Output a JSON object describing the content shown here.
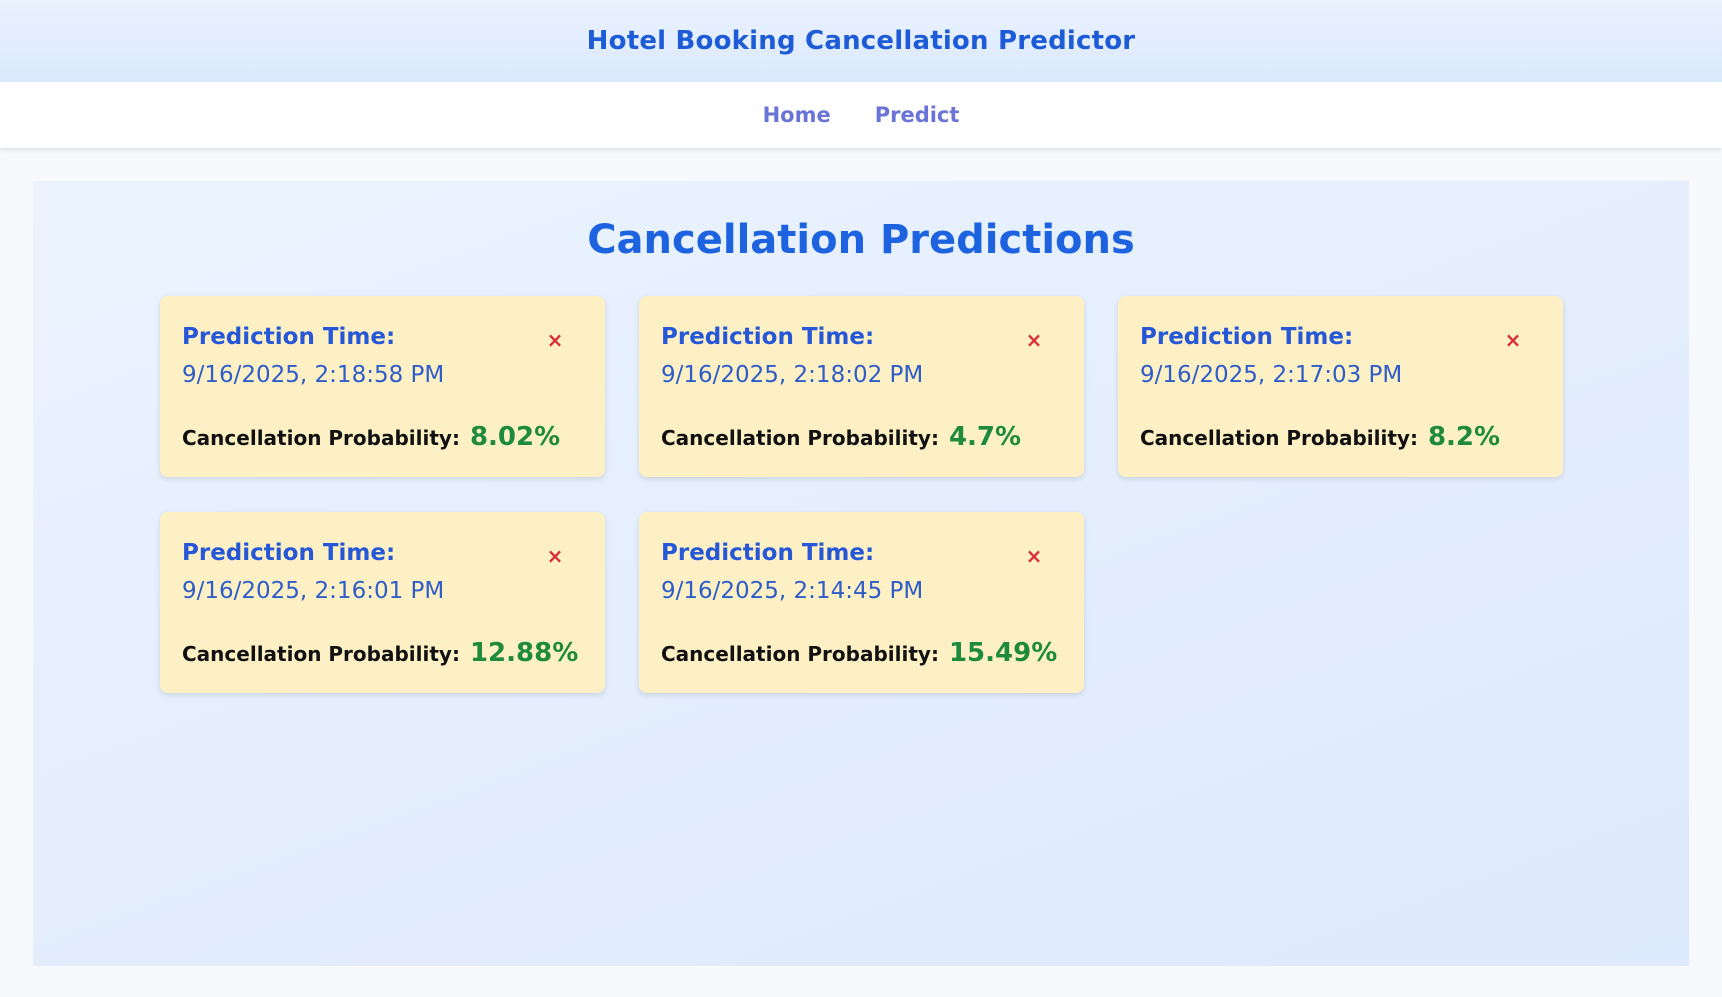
{
  "header": {
    "title": "Hotel Booking Cancellation Predictor"
  },
  "nav": {
    "items": [
      "Home",
      "Predict"
    ]
  },
  "main": {
    "title": "Cancellation Predictions",
    "cards": [
      {
        "label": "Prediction Time:",
        "time": "9/16/2025, 2:18:58 PM",
        "prob_label": "Cancellation Probability:",
        "prob_value": "8.02%",
        "close": "×"
      },
      {
        "label": "Prediction Time:",
        "time": "9/16/2025, 2:18:02 PM",
        "prob_label": "Cancellation Probability:",
        "prob_value": "4.7%",
        "close": "×"
      },
      {
        "label": "Prediction Time:",
        "time": "9/16/2025, 2:17:03 PM",
        "prob_label": "Cancellation Probability:",
        "prob_value": "8.2%",
        "close": "×"
      },
      {
        "label": "Prediction Time:",
        "time": "9/16/2025, 2:16:01 PM",
        "prob_label": "Cancellation Probability:",
        "prob_value": "12.88%",
        "close": "×"
      },
      {
        "label": "Prediction Time:",
        "time": "9/16/2025, 2:14:45 PM",
        "prob_label": "Cancellation Probability:",
        "prob_value": "15.49%",
        "close": "×"
      }
    ]
  },
  "colors": {
    "accent": "#1d63e0",
    "nav_link": "#6a73d6",
    "card_bg": "#fdf0c4",
    "probability": "#1e8a3c",
    "close": "#d8303a"
  }
}
